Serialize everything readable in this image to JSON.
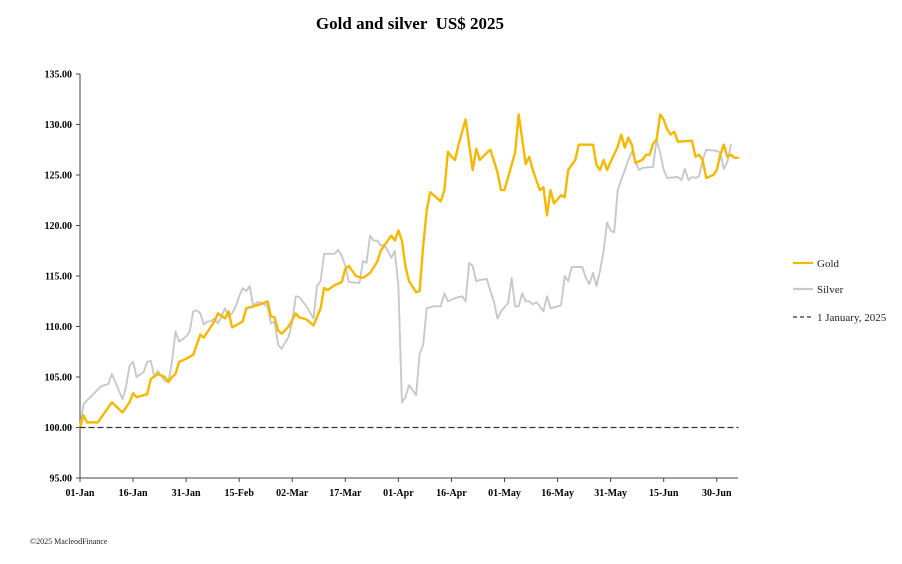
{
  "chart_data": {
    "type": "line",
    "title": "Gold and silver  US$ 2025",
    "xlabel": "",
    "ylabel": "",
    "ylim": [
      95,
      135
    ],
    "yticks": [
      "95.00",
      "100.00",
      "105.00",
      "110.00",
      "115.00",
      "120.00",
      "125.00",
      "130.00",
      "135.00"
    ],
    "xlim": [
      0,
      186
    ],
    "xticks": [
      {
        "label": "01-Jan",
        "day": 0
      },
      {
        "label": "16-Jan",
        "day": 15
      },
      {
        "label": "31-Jan",
        "day": 30
      },
      {
        "label": "15-Feb",
        "day": 45
      },
      {
        "label": "02-Mar",
        "day": 60
      },
      {
        "label": "17-Mar",
        "day": 75
      },
      {
        "label": "01-Apr",
        "day": 90
      },
      {
        "label": "16-Apr",
        "day": 105
      },
      {
        "label": "01-May",
        "day": 120
      },
      {
        "label": "16-May",
        "day": 135
      },
      {
        "label": "31-May",
        "day": 150
      },
      {
        "label": "15-Jun",
        "day": 165
      },
      {
        "label": "30-Jun",
        "day": 180
      }
    ],
    "legend_position": "right",
    "series": [
      {
        "name": "Gold",
        "color": "#f5b800",
        "points": [
          [
            0,
            100.0
          ],
          [
            1,
            101.2
          ],
          [
            2,
            100.5
          ],
          [
            5,
            100.5
          ],
          [
            7,
            101.5
          ],
          [
            9,
            102.5
          ],
          [
            12,
            101.5
          ],
          [
            14,
            102.5
          ],
          [
            15,
            103.4
          ],
          [
            16,
            103.0
          ],
          [
            19,
            103.3
          ],
          [
            20,
            104.8
          ],
          [
            22,
            105.3
          ],
          [
            24,
            105.0
          ],
          [
            25,
            104.5
          ],
          [
            26,
            105.0
          ],
          [
            27,
            105.3
          ],
          [
            28,
            106.5
          ],
          [
            30,
            106.8
          ],
          [
            32,
            107.2
          ],
          [
            34,
            109.2
          ],
          [
            35,
            108.9
          ],
          [
            38,
            110.5
          ],
          [
            39,
            111.3
          ],
          [
            41,
            110.8
          ],
          [
            42,
            111.5
          ],
          [
            43,
            109.9
          ],
          [
            46,
            110.5
          ],
          [
            47,
            111.8
          ],
          [
            49,
            112.0
          ],
          [
            51,
            112.2
          ],
          [
            53,
            112.5
          ],
          [
            54,
            111.0
          ],
          [
            55,
            110.9
          ],
          [
            56,
            109.6
          ],
          [
            57,
            109.3
          ],
          [
            59,
            110.0
          ],
          [
            61,
            111.3
          ],
          [
            62,
            110.9
          ],
          [
            64,
            110.7
          ],
          [
            66,
            110.1
          ],
          [
            68,
            111.8
          ],
          [
            69,
            113.8
          ],
          [
            70,
            113.6
          ],
          [
            72,
            114.1
          ],
          [
            74,
            114.4
          ],
          [
            75,
            115.7
          ],
          [
            76,
            116.0
          ],
          [
            78,
            115.0
          ],
          [
            80,
            114.8
          ],
          [
            82,
            115.3
          ],
          [
            84,
            116.4
          ],
          [
            85,
            117.5
          ],
          [
            87,
            118.5
          ],
          [
            88,
            119.0
          ],
          [
            89,
            118.5
          ],
          [
            90,
            119.5
          ],
          [
            91,
            118.5
          ],
          [
            92,
            115.9
          ],
          [
            93,
            114.5
          ],
          [
            95,
            113.4
          ],
          [
            96,
            113.5
          ],
          [
            97,
            118.0
          ],
          [
            98,
            121.5
          ],
          [
            99,
            123.3
          ],
          [
            102,
            122.4
          ],
          [
            103,
            123.5
          ],
          [
            104,
            127.3
          ],
          [
            105,
            126.8
          ],
          [
            106,
            126.5
          ],
          [
            107,
            128.0
          ],
          [
            109,
            130.5
          ],
          [
            111,
            125.5
          ],
          [
            112,
            127.6
          ],
          [
            113,
            126.5
          ],
          [
            115,
            127.2
          ],
          [
            116,
            127.5
          ],
          [
            118,
            125.3
          ],
          [
            119,
            123.5
          ],
          [
            120,
            123.5
          ],
          [
            122,
            126.0
          ],
          [
            123,
            127.2
          ],
          [
            124,
            131.0
          ],
          [
            126,
            126.1
          ],
          [
            127,
            126.8
          ],
          [
            128,
            125.5
          ],
          [
            130,
            123.5
          ],
          [
            131,
            123.8
          ],
          [
            132,
            121.0
          ],
          [
            133,
            123.5
          ],
          [
            134,
            122.2
          ],
          [
            136,
            123.0
          ],
          [
            137,
            122.8
          ],
          [
            138,
            125.5
          ],
          [
            140,
            126.5
          ],
          [
            141,
            128.0
          ],
          [
            145,
            128.0
          ],
          [
            146,
            126.0
          ],
          [
            147,
            125.5
          ],
          [
            148,
            126.5
          ],
          [
            149,
            125.5
          ],
          [
            150,
            126.3
          ],
          [
            152,
            127.8
          ],
          [
            153,
            129.0
          ],
          [
            154,
            127.7
          ],
          [
            155,
            128.7
          ],
          [
            156,
            128.0
          ],
          [
            157,
            126.2
          ],
          [
            159,
            126.5
          ],
          [
            160,
            127.0
          ],
          [
            161,
            127.0
          ],
          [
            162,
            128.1
          ],
          [
            163,
            128.5
          ],
          [
            164,
            131.0
          ],
          [
            165,
            130.5
          ],
          [
            166,
            129.5
          ],
          [
            167,
            129.0
          ],
          [
            168,
            129.3
          ],
          [
            169,
            128.3
          ],
          [
            173,
            128.4
          ],
          [
            174,
            126.8
          ],
          [
            175,
            127.0
          ],
          [
            176,
            126.5
          ],
          [
            177,
            124.7
          ],
          [
            179,
            125.0
          ],
          [
            180,
            125.5
          ],
          [
            181,
            127.0
          ],
          [
            182,
            128.0
          ],
          [
            183,
            126.8
          ],
          [
            184,
            127.0
          ],
          [
            185,
            126.7
          ],
          [
            186,
            126.7
          ]
        ]
      },
      {
        "name": "Silver",
        "color": "#c8c8c8",
        "points": [
          [
            0,
            100.0
          ],
          [
            1,
            102.3
          ],
          [
            2,
            102.7
          ],
          [
            4,
            103.4
          ],
          [
            6,
            104.1
          ],
          [
            8,
            104.3
          ],
          [
            9,
            105.3
          ],
          [
            10,
            104.5
          ],
          [
            12,
            102.8
          ],
          [
            13,
            104.0
          ],
          [
            14,
            106.1
          ],
          [
            15,
            106.5
          ],
          [
            16,
            105.0
          ],
          [
            18,
            105.5
          ],
          [
            19,
            106.5
          ],
          [
            20,
            106.6
          ],
          [
            21,
            105.0
          ],
          [
            22,
            105.6
          ],
          [
            24,
            104.6
          ],
          [
            25,
            104.5
          ],
          [
            26,
            106.5
          ],
          [
            27,
            109.5
          ],
          [
            28,
            108.5
          ],
          [
            30,
            109.0
          ],
          [
            31,
            109.5
          ],
          [
            32,
            111.5
          ],
          [
            33,
            111.6
          ],
          [
            34,
            111.3
          ],
          [
            35,
            110.2
          ],
          [
            36,
            110.5
          ],
          [
            37,
            110.5
          ],
          [
            38,
            110.8
          ],
          [
            39,
            110.3
          ],
          [
            40,
            111.0
          ],
          [
            41,
            111.8
          ],
          [
            42,
            111.0
          ],
          [
            43,
            111.3
          ],
          [
            44,
            112.0
          ],
          [
            45,
            113.0
          ],
          [
            46,
            113.8
          ],
          [
            47,
            113.5
          ],
          [
            48,
            114.0
          ],
          [
            49,
            112.0
          ],
          [
            50,
            112.4
          ],
          [
            51,
            112.4
          ],
          [
            53,
            112.0
          ],
          [
            54,
            110.3
          ],
          [
            55,
            110.5
          ],
          [
            56,
            108.2
          ],
          [
            57,
            107.8
          ],
          [
            59,
            109.0
          ],
          [
            60,
            110.5
          ],
          [
            61,
            113.0
          ],
          [
            62,
            112.9
          ],
          [
            64,
            112.0
          ],
          [
            66,
            110.8
          ],
          [
            67,
            114.0
          ],
          [
            68,
            114.5
          ],
          [
            69,
            117.2
          ],
          [
            72,
            117.2
          ],
          [
            73,
            117.6
          ],
          [
            74,
            117.0
          ],
          [
            75,
            116.0
          ],
          [
            76,
            114.4
          ],
          [
            79,
            114.3
          ],
          [
            80,
            116.5
          ],
          [
            81,
            116.3
          ],
          [
            82,
            119.0
          ],
          [
            83,
            118.5
          ],
          [
            84,
            118.5
          ],
          [
            85,
            118.0
          ],
          [
            86,
            118.1
          ],
          [
            87,
            117.5
          ],
          [
            88,
            116.8
          ],
          [
            89,
            117.5
          ],
          [
            90,
            114.0
          ],
          [
            91,
            102.5
          ],
          [
            92,
            103.0
          ],
          [
            93,
            104.2
          ],
          [
            95,
            103.2
          ],
          [
            96,
            107.3
          ],
          [
            97,
            108.2
          ],
          [
            98,
            111.8
          ],
          [
            100,
            112.0
          ],
          [
            102,
            112.0
          ],
          [
            103,
            113.3
          ],
          [
            104,
            112.5
          ],
          [
            106,
            112.8
          ],
          [
            108,
            113.0
          ],
          [
            109,
            112.5
          ],
          [
            110,
            116.3
          ],
          [
            111,
            116.0
          ],
          [
            112,
            114.5
          ],
          [
            113,
            114.6
          ],
          [
            115,
            114.7
          ],
          [
            116,
            113.5
          ],
          [
            117,
            112.5
          ],
          [
            118,
            110.8
          ],
          [
            119,
            111.5
          ],
          [
            120,
            111.9
          ],
          [
            121,
            112.3
          ],
          [
            122,
            114.8
          ],
          [
            123,
            112.0
          ],
          [
            124,
            112.0
          ],
          [
            125,
            113.3
          ],
          [
            126,
            112.5
          ],
          [
            127,
            112.5
          ],
          [
            128,
            112.2
          ],
          [
            129,
            112.4
          ],
          [
            130,
            112.0
          ],
          [
            131,
            111.5
          ],
          [
            132,
            113.0
          ],
          [
            133,
            111.8
          ],
          [
            134,
            111.9
          ],
          [
            136,
            112.1
          ],
          [
            137,
            115.0
          ],
          [
            138,
            114.5
          ],
          [
            139,
            115.9
          ],
          [
            142,
            115.9
          ],
          [
            143,
            114.8
          ],
          [
            144,
            114.2
          ],
          [
            145,
            115.3
          ],
          [
            146,
            114.0
          ],
          [
            147,
            115.5
          ],
          [
            148,
            117.5
          ],
          [
            149,
            120.3
          ],
          [
            150,
            119.5
          ],
          [
            151,
            119.3
          ],
          [
            152,
            123.5
          ],
          [
            153,
            124.5
          ],
          [
            154,
            125.5
          ],
          [
            155,
            126.5
          ],
          [
            156,
            127.3
          ],
          [
            158,
            125.5
          ],
          [
            159,
            125.7
          ],
          [
            162,
            125.8
          ],
          [
            163,
            128.5
          ],
          [
            164,
            127.2
          ],
          [
            165,
            125.5
          ],
          [
            166,
            124.7
          ],
          [
            169,
            124.8
          ],
          [
            170,
            124.5
          ],
          [
            171,
            125.6
          ],
          [
            172,
            124.5
          ],
          [
            173,
            124.8
          ],
          [
            174,
            124.7
          ],
          [
            175,
            124.9
          ],
          [
            176,
            126.5
          ],
          [
            177,
            127.5
          ],
          [
            180,
            127.4
          ],
          [
            181,
            127.2
          ],
          [
            182,
            125.6
          ],
          [
            183,
            126.3
          ],
          [
            184,
            128.0
          ]
        ]
      },
      {
        "name": "1 January, 2025",
        "color": "#333333",
        "dashed": true,
        "points": [
          [
            0,
            100.0
          ],
          [
            186,
            100.0
          ]
        ]
      }
    ]
  },
  "footer": {
    "copyright": "©2025 MacleodFinance"
  }
}
